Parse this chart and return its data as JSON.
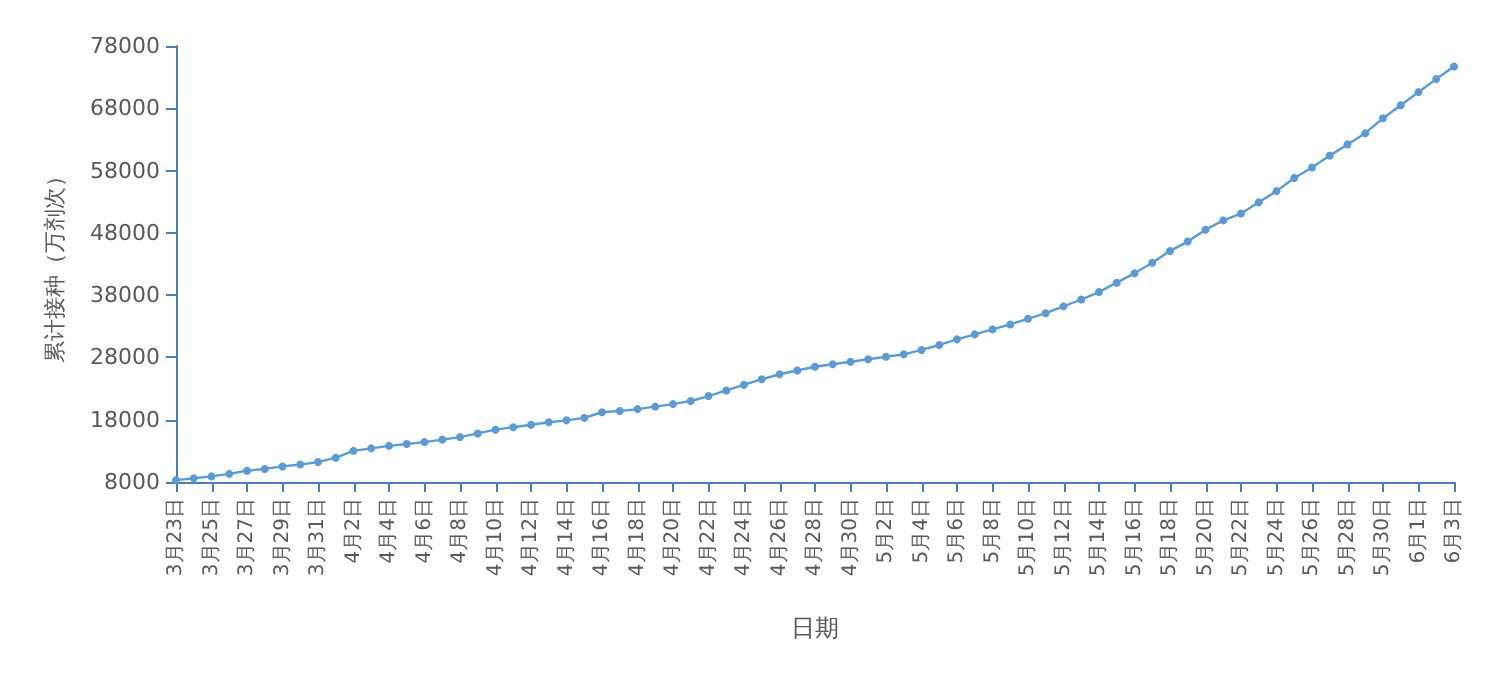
{
  "chart_data": {
    "type": "line",
    "xlabel": "日期",
    "ylabel": "累计接种（万剂次）",
    "categories": [
      "3月23日",
      null,
      "3月25日",
      null,
      "3月27日",
      null,
      "3月29日",
      null,
      "3月31日",
      null,
      "4月2日",
      null,
      "4月4日",
      null,
      "4月6日",
      null,
      "4月8日",
      null,
      "4月10日",
      null,
      "4月12日",
      null,
      "4月14日",
      null,
      "4月16日",
      null,
      "4月18日",
      null,
      "4月20日",
      null,
      "4月22日",
      null,
      "4月24日",
      null,
      "4月26日",
      null,
      "4月28日",
      null,
      "4月30日",
      null,
      "5月2日",
      null,
      "5月4日",
      null,
      "5月6日",
      null,
      "5月8日",
      null,
      "5月10日",
      null,
      "5月12日",
      null,
      "5月14日",
      null,
      "5月16日",
      null,
      "5月18日",
      null,
      "5月20日",
      null,
      "5月22日",
      null,
      "5月24日",
      null,
      "5月26日",
      null,
      "5月28日",
      null,
      "5月30日",
      null,
      "6月1日",
      null,
      "6月3日"
    ],
    "series": [
      {
        "color": "#5b9bd5",
        "values": [
          8300,
          8600,
          8900,
          9300,
          9800,
          10100,
          10500,
          10800,
          11200,
          11900,
          13000,
          13400,
          13800,
          14100,
          14400,
          14800,
          15200,
          15800,
          16400,
          16800,
          17200,
          17600,
          17900,
          18300,
          19200,
          19400,
          19700,
          20100,
          20500,
          21000,
          21800,
          22700,
          23600,
          24500,
          25300,
          25900,
          26500,
          26900,
          27300,
          27700,
          28100,
          28500,
          29200,
          30000,
          30900,
          31700,
          32500,
          33300,
          34200,
          35100,
          36200,
          37300,
          38500,
          40000,
          41500,
          43200,
          45100,
          46600,
          48500,
          50000,
          51100,
          52900,
          54700,
          56800,
          58500,
          60400,
          62200,
          64000,
          66400,
          68500,
          70600,
          72700,
          74700
        ]
      }
    ],
    "ylim": [
      8000,
      78000
    ],
    "yticks": [
      8000,
      18000,
      28000,
      38000,
      48000,
      58000,
      68000,
      78000
    ],
    "grid": false,
    "marker": "circle",
    "line_style": "solid"
  }
}
